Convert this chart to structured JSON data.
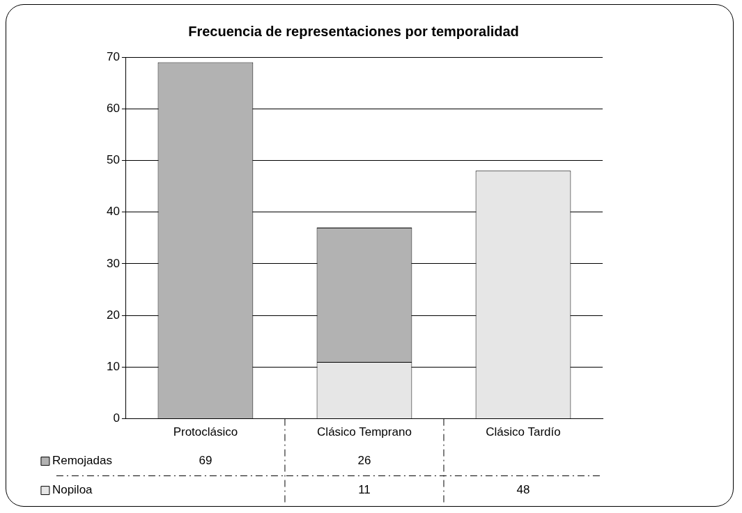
{
  "chart_data": {
    "type": "bar",
    "title": "Frecuencia de representaciones por temporalidad",
    "categories": [
      "Protoclásico",
      "Clásico Temprano",
      "Clásico Tardío"
    ],
    "series": [
      {
        "name": "Nopiloa",
        "color": "#e6e6e6",
        "values": [
          null,
          11,
          48
        ]
      },
      {
        "name": "Remojadas",
        "color": "#b2b2b2",
        "values": [
          69,
          26,
          null
        ]
      }
    ],
    "stacked": true,
    "ylim": [
      0,
      70
    ],
    "yticks": [
      0,
      10,
      20,
      30,
      40,
      50,
      60,
      70
    ],
    "grid": "y",
    "legend": "bottom",
    "data_labels": true
  }
}
